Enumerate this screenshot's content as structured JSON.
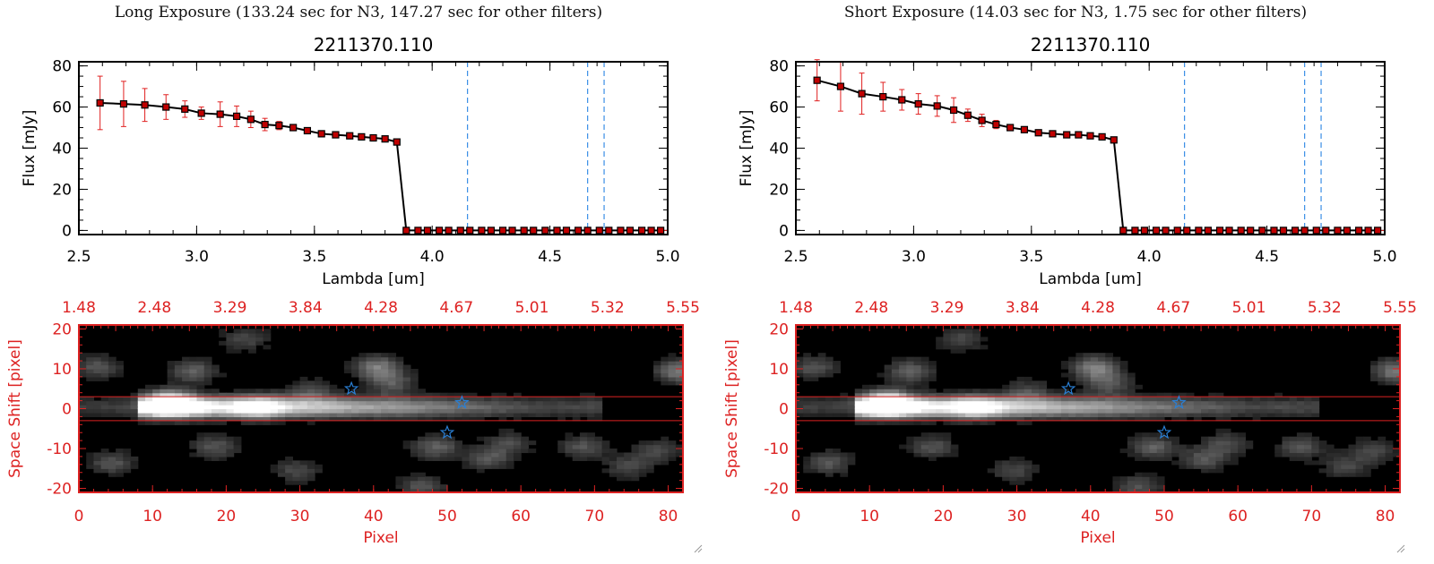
{
  "panels": [
    {
      "exposure_title": "Long Exposure (133.24 sec for N3, 147.27 sec for other filters)",
      "spectrum_title": "2211370.110"
    },
    {
      "exposure_title": "Short Exposure (14.03 sec for N3, 1.75 sec for other filters)",
      "spectrum_title": "2211370.110"
    }
  ],
  "colors": {
    "series": "#000000",
    "marker": "#c00000",
    "error_bar": "#e02020",
    "filter_line": "#3a8ee6",
    "image_axes": "#dd2222",
    "zero_line": "#e02020",
    "star": "#2a7fd4"
  },
  "chart_data": [
    {
      "type": "line",
      "title": "2211370.110",
      "xlabel": "Lambda [um]",
      "ylabel": "Flux [mJy]",
      "xlim": [
        2.5,
        5.0
      ],
      "ylim": [
        -2,
        82
      ],
      "xticks": [
        "2.5",
        "3.0",
        "3.5",
        "4.0",
        "4.5",
        "5.0"
      ],
      "yticks": [
        "0",
        "20",
        "40",
        "60",
        "80"
      ],
      "grid": false,
      "x": [
        2.59,
        2.69,
        2.78,
        2.87,
        2.95,
        3.02,
        3.1,
        3.17,
        3.23,
        3.29,
        3.35,
        3.41,
        3.47,
        3.53,
        3.59,
        3.65,
        3.7,
        3.75,
        3.8,
        3.85,
        3.89,
        3.94,
        3.98,
        4.03,
        4.07,
        4.12,
        4.16,
        4.21,
        4.25,
        4.3,
        4.34,
        4.39,
        4.43,
        4.48,
        4.53,
        4.57,
        4.62,
        4.66,
        4.71,
        4.75,
        4.8,
        4.84,
        4.89,
        4.93,
        4.97
      ],
      "y": [
        62,
        61.5,
        61,
        60,
        59,
        57,
        56.5,
        55.5,
        54,
        51.5,
        51,
        50,
        48.5,
        47,
        46.5,
        46,
        45.5,
        45,
        44.5,
        43,
        0,
        0,
        0,
        0,
        0,
        0,
        0,
        0,
        0,
        0,
        0,
        0,
        0,
        0,
        0,
        0,
        0,
        0,
        0,
        0,
        0,
        0,
        0,
        0,
        0
      ],
      "yerr": [
        13,
        11,
        8,
        6,
        4,
        3,
        6,
        5,
        4,
        3,
        2,
        1,
        1,
        1,
        1,
        1,
        1,
        1,
        1,
        1,
        0,
        0,
        0,
        0,
        0,
        0,
        0,
        0,
        0,
        0,
        0,
        0,
        0,
        0,
        0,
        0,
        0,
        0,
        0,
        0,
        0,
        0,
        0,
        0,
        0
      ],
      "filter_lines": [
        4.15,
        4.66,
        4.73
      ]
    },
    {
      "type": "heatmap",
      "xlabel": "Pixel",
      "ylabel": "Space Shift [pixel]",
      "xlim": [
        0,
        82
      ],
      "ylim": [
        -21,
        21
      ],
      "xticks": [
        "0",
        "10",
        "20",
        "30",
        "40",
        "50",
        "60",
        "70",
        "80"
      ],
      "yticks": [
        "-20",
        "-10",
        "0",
        "10",
        "20"
      ],
      "top_axis_ticks": [
        "1.48",
        "2.48",
        "3.29",
        "3.84",
        "4.28",
        "4.67",
        "5.01",
        "5.32",
        "5.55"
      ],
      "extraction_band": [
        -3,
        3
      ],
      "stars": [
        [
          37,
          5
        ],
        [
          52,
          1.5
        ],
        [
          50,
          -6
        ]
      ]
    },
    {
      "type": "line",
      "title": "2211370.110",
      "xlabel": "Lambda [um]",
      "ylabel": "Flux [mJy]",
      "xlim": [
        2.5,
        5.0
      ],
      "ylim": [
        -2,
        82
      ],
      "xticks": [
        "2.5",
        "3.0",
        "3.5",
        "4.0",
        "4.5",
        "5.0"
      ],
      "yticks": [
        "0",
        "20",
        "40",
        "60",
        "80"
      ],
      "grid": false,
      "x": [
        2.59,
        2.69,
        2.78,
        2.87,
        2.95,
        3.02,
        3.1,
        3.17,
        3.23,
        3.29,
        3.35,
        3.41,
        3.47,
        3.53,
        3.59,
        3.65,
        3.7,
        3.75,
        3.8,
        3.85,
        3.89,
        3.94,
        3.98,
        4.03,
        4.07,
        4.12,
        4.16,
        4.21,
        4.25,
        4.3,
        4.34,
        4.39,
        4.43,
        4.48,
        4.53,
        4.57,
        4.62,
        4.66,
        4.71,
        4.75,
        4.8,
        4.84,
        4.89,
        4.93,
        4.97
      ],
      "y": [
        73,
        70,
        66.5,
        65,
        63.5,
        61.5,
        60.5,
        58.5,
        56,
        53.5,
        51.5,
        50,
        49,
        47.5,
        47,
        46.5,
        46.5,
        46,
        45.5,
        44,
        0,
        0,
        0,
        0,
        0,
        0,
        0,
        0,
        0,
        0,
        0,
        0,
        0,
        0,
        0,
        0,
        0,
        0,
        0,
        0,
        0,
        0,
        0,
        0,
        0
      ],
      "yerr": [
        10,
        12,
        10,
        7,
        5,
        5,
        5,
        6,
        3,
        3,
        2,
        1,
        1,
        1,
        1,
        1,
        1,
        1,
        1,
        1,
        0,
        0,
        0,
        0,
        0,
        0,
        0,
        0,
        0,
        0,
        0,
        0,
        0,
        0,
        0,
        0,
        0,
        0,
        0,
        0,
        0,
        0,
        0,
        0,
        0
      ],
      "filter_lines": [
        4.15,
        4.66,
        4.73
      ]
    },
    {
      "type": "heatmap",
      "xlabel": "Pixel",
      "ylabel": "Space Shift [pixel]",
      "xlim": [
        0,
        82
      ],
      "ylim": [
        -21,
        21
      ],
      "xticks": [
        "0",
        "10",
        "20",
        "30",
        "40",
        "50",
        "60",
        "70",
        "80"
      ],
      "yticks": [
        "-20",
        "-10",
        "0",
        "10",
        "20"
      ],
      "top_axis_ticks": [
        "1.48",
        "2.48",
        "3.29",
        "3.84",
        "4.28",
        "4.67",
        "5.01",
        "5.32",
        "5.55"
      ],
      "extraction_band": [
        -3,
        3
      ],
      "stars": [
        [
          37,
          5
        ],
        [
          52,
          1.5
        ],
        [
          50,
          -6
        ]
      ]
    }
  ]
}
